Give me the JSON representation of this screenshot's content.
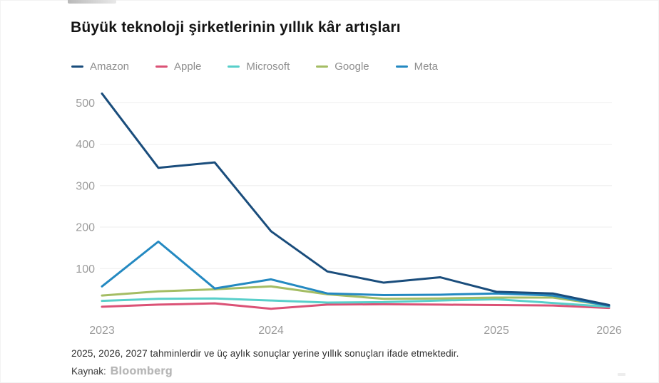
{
  "page": {
    "title": "Büyük teknoloji şirketlerinin yıllık kâr artışları",
    "footnote": "2025, 2026, 2027 tahminlerdir ve üç aylık sonuçlar yerine yıllık sonuçları ifade etmektedir.",
    "source_label": "Kaynak:",
    "source_name": "Bloomberg"
  },
  "chart_data": {
    "type": "line",
    "title": "Büyük teknoloji şirketlerinin yıllık kâr artışları",
    "legend_position": "top",
    "grid": "horizontal-faint",
    "x_points": [
      0,
      1,
      2,
      3,
      4,
      5,
      6,
      7,
      8,
      9
    ],
    "x_ticks": [
      {
        "label": "2023",
        "t": 0
      },
      {
        "label": "2024",
        "t": 3
      },
      {
        "label": "2025",
        "t": 7
      },
      {
        "label": "2026",
        "t": 9
      }
    ],
    "y_ticks": [
      100,
      200,
      300,
      400,
      500
    ],
    "ylim": [
      0,
      540
    ],
    "series": [
      {
        "name": "Amazon",
        "color": "#1a4d7c",
        "values": [
          522,
          343,
          356,
          190,
          93,
          66,
          79,
          44,
          40,
          12
        ]
      },
      {
        "name": "Apple",
        "color": "#db5276",
        "values": [
          8,
          13,
          16,
          3,
          13,
          14,
          13,
          12,
          11,
          5
        ]
      },
      {
        "name": "Microsoft",
        "color": "#58cfca",
        "values": [
          22,
          27,
          28,
          23,
          18,
          19,
          23,
          26,
          17,
          8
        ]
      },
      {
        "name": "Google",
        "color": "#a4bd64",
        "values": [
          35,
          45,
          50,
          57,
          38,
          27,
          28,
          30,
          30,
          11
        ]
      },
      {
        "name": "Meta",
        "color": "#2489c1",
        "values": [
          57,
          165,
          52,
          74,
          40,
          36,
          37,
          40,
          35,
          10
        ]
      }
    ],
    "draw_order": [
      "Apple",
      "Microsoft",
      "Google",
      "Meta",
      "Amazon"
    ]
  }
}
